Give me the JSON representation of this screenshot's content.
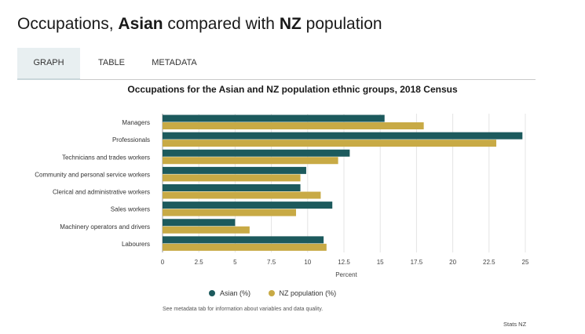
{
  "header": {
    "title_part1": "Occupations, ",
    "title_part2": "Asian",
    "title_part3": " compared with ",
    "title_part4": "NZ",
    "title_part5": " population"
  },
  "tabs": [
    {
      "label": "GRAPH",
      "active": true
    },
    {
      "label": "TABLE",
      "active": false
    },
    {
      "label": "METADATA",
      "active": false
    }
  ],
  "chart_data": {
    "type": "bar",
    "orientation": "horizontal",
    "title": "Occupations for the Asian and NZ population ethnic groups, 2018 Census",
    "xlabel": "Percent",
    "ylabel": "",
    "categories": [
      "Managers",
      "Professionals",
      "Technicians and trades workers",
      "Community and personal service workers",
      "Clerical and administrative workers",
      "Sales workers",
      "Machinery operators and drivers",
      "Labourers"
    ],
    "series": [
      {
        "name": "Asian (%)",
        "color": "#1c5a5d",
        "values": [
          15.3,
          24.8,
          12.9,
          9.9,
          9.5,
          11.7,
          5.0,
          11.1
        ]
      },
      {
        "name": "NZ population (%)",
        "color": "#c8aa45",
        "values": [
          18.0,
          23.0,
          12.1,
          9.5,
          10.9,
          9.2,
          6.0,
          11.3
        ]
      }
    ],
    "xlim": [
      0,
      25
    ],
    "xticks": [
      "0",
      "2.5",
      "5",
      "7.5",
      "10",
      "12.5",
      "15",
      "17.5",
      "20",
      "22.5",
      "25"
    ],
    "grid": true,
    "legend_position": "bottom"
  },
  "footer": {
    "note": "See metadata tab for information about variables and data quality.",
    "source": "Stats NZ"
  }
}
